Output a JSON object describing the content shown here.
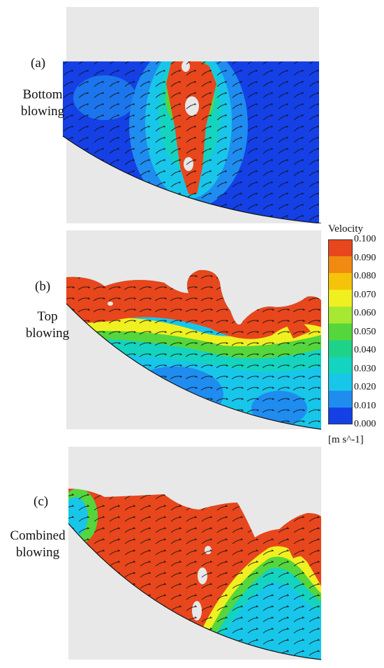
{
  "panels": [
    {
      "id": "a",
      "label": "(a)",
      "description_line1": "Bottom",
      "description_line2": "blowing"
    },
    {
      "id": "b",
      "label": "(b)",
      "description_line1": "Top",
      "description_line2": "blowing"
    },
    {
      "id": "c",
      "label": "(c)",
      "description_line1": "Combined",
      "description_line2": "blowing"
    }
  ],
  "legend": {
    "title": "Velocity",
    "unit": "[m s^-1]",
    "ticks": [
      "0.100",
      "0.090",
      "0.080",
      "0.070",
      "0.060",
      "0.050",
      "0.040",
      "0.030",
      "0.020",
      "0.010",
      "0.000"
    ],
    "colors": [
      "#e8461c",
      "#f08a10",
      "#f5c40a",
      "#f0f020",
      "#a6e832",
      "#55d63c",
      "#1fd28a",
      "#14d4c0",
      "#18c6ea",
      "#1f8cf0",
      "#1440e6"
    ]
  },
  "colors": {
    "background_gray": "#e8e8e8",
    "high_velocity": "#e8461c",
    "low_velocity": "#1440e6",
    "mid_velocity": "#18c6ea",
    "vector_arrows": "#111111"
  }
}
